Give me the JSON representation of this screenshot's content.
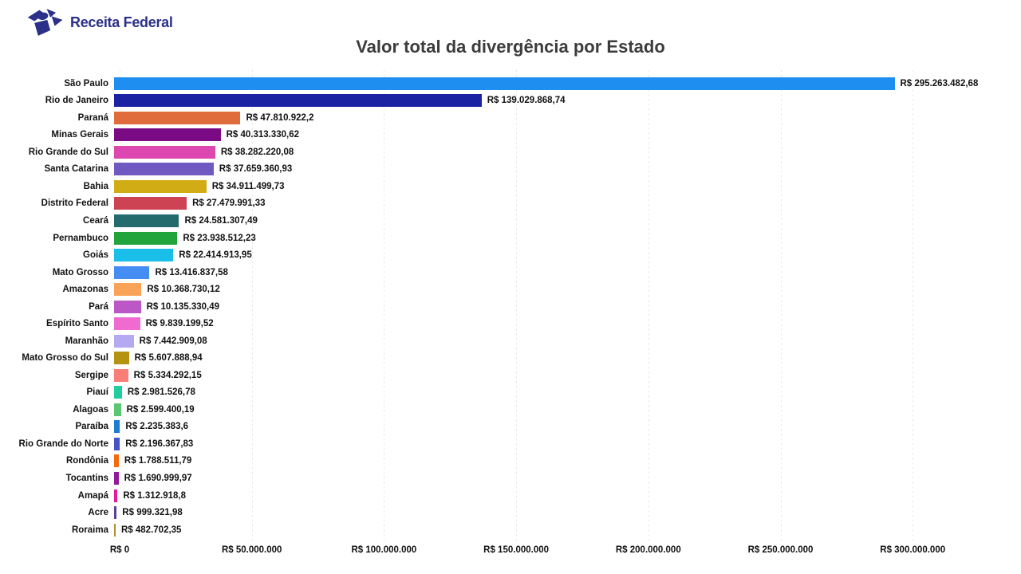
{
  "header": {
    "logo_text": "Receita Federal"
  },
  "chart_data": {
    "type": "bar",
    "orientation": "horizontal",
    "title": "Valor total da divergência por Estado",
    "xlabel": "",
    "ylabel": "",
    "x_axis": {
      "tick_labels": [
        "R$ 0",
        "R$ 50.000.000",
        "R$ 100.000.000",
        "R$ 150.000.000",
        "R$ 200.000.000",
        "R$ 250.000.000",
        "R$ 300.000.000"
      ],
      "tick_values": [
        0,
        50000000,
        100000000,
        150000000,
        200000000,
        250000000,
        300000000
      ],
      "grid": "dotted-vertical"
    },
    "categories": [
      "São Paulo",
      "Rio de Janeiro",
      "Paraná",
      "Minas Gerais",
      "Rio Grande do Sul",
      "Santa Catarina",
      "Bahia",
      "Distrito Federal",
      "Ceará",
      "Pernambuco",
      "Goiás",
      "Mato Grosso",
      "Amazonas",
      "Pará",
      "Espírito Santo",
      "Maranhão",
      "Mato Grosso do Sul",
      "Sergipe",
      "Piauí",
      "Alagoas",
      "Paraíba",
      "Rio Grande do Norte",
      "Rondônia",
      "Tocantins",
      "Amapá",
      "Acre",
      "Roraima"
    ],
    "values": [
      295263482.68,
      139029868.74,
      47810922.2,
      40313330.62,
      38282220.08,
      37659360.93,
      34911499.73,
      27479991.33,
      24581307.49,
      23938512.23,
      22414913.95,
      13416837.58,
      10368730.12,
      10135330.49,
      9839199.52,
      7442909.08,
      5607888.94,
      5334292.15,
      2981526.78,
      2599400.19,
      2235383.6,
      2196367.83,
      1788511.79,
      1690999.97,
      1312918.8,
      999321.98,
      482702.35
    ],
    "value_labels": [
      "R$ 295.263.482,68",
      "R$ 139.029.868,74",
      "R$ 47.810.922,2",
      "R$ 40.313.330,62",
      "R$ 38.282.220,08",
      "R$ 37.659.360,93",
      "R$ 34.911.499,73",
      "R$ 27.479.991,33",
      "R$ 24.581.307,49",
      "R$ 23.938.512,23",
      "R$ 22.414.913,95",
      "R$ 13.416.837,58",
      "R$ 10.368.730,12",
      "R$ 10.135.330,49",
      "R$ 9.839.199,52",
      "R$ 7.442.909,08",
      "R$ 5.607.888,94",
      "R$ 5.334.292,15",
      "R$ 2.981.526,78",
      "R$ 2.599.400,19",
      "R$ 2.235.383,6",
      "R$ 2.196.367,83",
      "R$ 1.788.511,79",
      "R$ 1.690.999,97",
      "R$ 1.312.918,8",
      "R$ 999.321,98",
      "R$ 482.702,35"
    ],
    "bar_colors": [
      "#1e8ff0",
      "#1b23a3",
      "#e16c3b",
      "#7a0b85",
      "#dc48b0",
      "#7159c2",
      "#d2ac14",
      "#cd4353",
      "#236b6c",
      "#22a43d",
      "#19bee9",
      "#468df3",
      "#f9a258",
      "#bb58c6",
      "#ef6bd0",
      "#b5a9f1",
      "#b39311",
      "#f97e77",
      "#1fcda1",
      "#5ac873",
      "#1b7cd0",
      "#4654c5",
      "#f26b0e",
      "#901d97",
      "#e4199f",
      "#5b3f99",
      "#b08f29"
    ],
    "colors": {
      "logo_navy": "#2b3088",
      "title_text": "#3c3c3c",
      "label_text": "#111111",
      "gridline": "#e7e7e7"
    }
  }
}
